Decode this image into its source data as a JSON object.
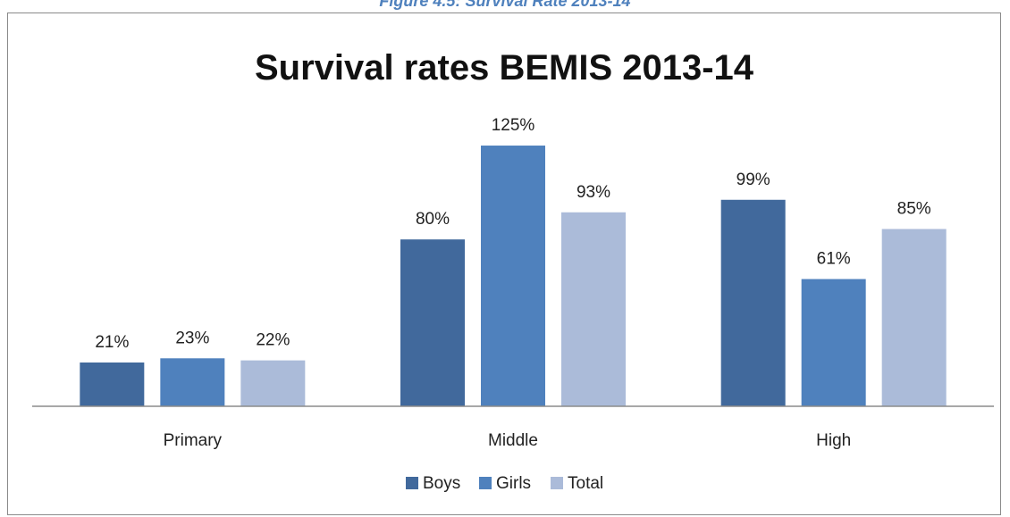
{
  "caption": "Figure 4.5: Survival Rate 2013-14",
  "chart_data": {
    "type": "bar",
    "title": "Survival rates BEMIS 2013-14",
    "categories": [
      "Primary",
      "Middle",
      "High"
    ],
    "series": [
      {
        "name": "Boys",
        "values": [
          21,
          80,
          99
        ],
        "labels": [
          "21%",
          "80%",
          "99%"
        ],
        "color": "#41699c"
      },
      {
        "name": "Girls",
        "values": [
          23,
          125,
          61
        ],
        "labels": [
          "23%",
          "125%",
          "61%"
        ],
        "color": "#4f81bd"
      },
      {
        "name": "Total",
        "values": [
          22,
          93,
          85
        ],
        "labels": [
          "22%",
          "93%",
          "85%"
        ],
        "color": "#abbbd9"
      }
    ],
    "ylim": [
      0,
      140
    ],
    "grid": false,
    "legend": "bottom"
  }
}
